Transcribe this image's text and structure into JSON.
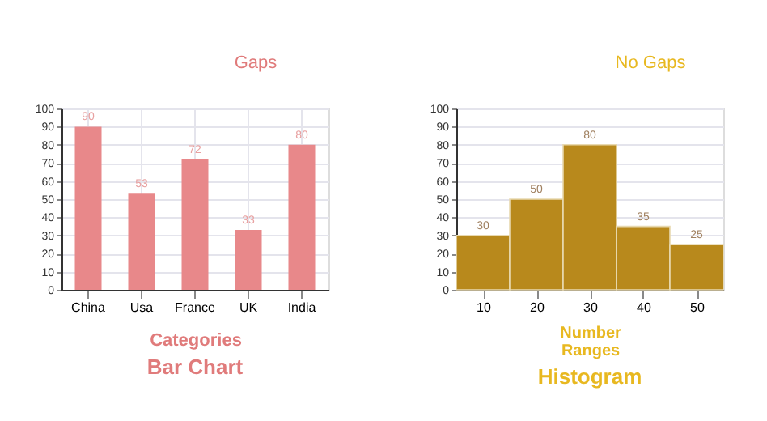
{
  "chart_data": [
    {
      "type": "bar",
      "title": "Bar Chart",
      "xlabel": "Categories",
      "annotations": [
        "Gaps"
      ],
      "categories": [
        "China",
        "Usa",
        "France",
        "UK",
        "India"
      ],
      "values": [
        90,
        53,
        72,
        33,
        80
      ],
      "color": "#e8888a",
      "ylim": [
        0,
        100
      ],
      "yticks": [
        0,
        10,
        20,
        30,
        40,
        50,
        60,
        70,
        80,
        90,
        100
      ],
      "grid": true,
      "data_labels": true
    },
    {
      "type": "histogram",
      "title": "Histogram",
      "xlabel": "Number Ranges",
      "annotations": [
        "No Gaps"
      ],
      "bins": [
        5,
        15,
        25,
        35,
        45,
        55
      ],
      "values": [
        30,
        50,
        80,
        35,
        25
      ],
      "color": "#b8891c",
      "xlim": [
        5,
        55
      ],
      "xticks": [
        10,
        20,
        30,
        40,
        50
      ],
      "ylim": [
        0,
        100
      ],
      "yticks": [
        0,
        10,
        20,
        30,
        40,
        50,
        60,
        70,
        80,
        90,
        100
      ],
      "grid": "y",
      "data_labels": true
    }
  ]
}
